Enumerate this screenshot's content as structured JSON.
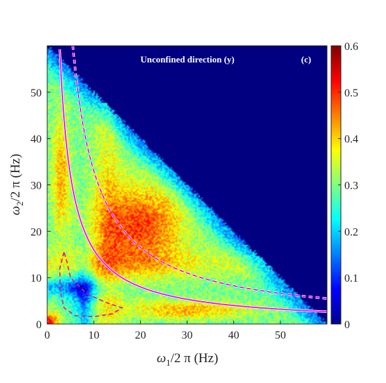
{
  "chart_data": {
    "type": "heatmap",
    "title": "",
    "annotation": "Unconfined direction (y)",
    "panel_label": "(c)",
    "xlabel": {
      "symbol": "ω",
      "sub": "1",
      "rest": "/2 π (Hz)"
    },
    "ylabel": {
      "symbol": "ω",
      "sub": "2",
      "rest": "/2 π (Hz)"
    },
    "xlim": [
      0,
      60
    ],
    "ylim": [
      0,
      60
    ],
    "xticks": [
      0,
      10,
      20,
      30,
      40,
      50
    ],
    "yticks": [
      0,
      10,
      20,
      30,
      40,
      50
    ],
    "colorbar": {
      "min": 0,
      "max": 0.6,
      "ticks": [
        0,
        0.1,
        0.2,
        0.3,
        0.4,
        0.5,
        0.6
      ],
      "colormap": "jet"
    },
    "masked_region": "omega1 + omega2 > 60",
    "hotspots": [
      {
        "x": 20,
        "y": 21,
        "value": 0.48
      },
      {
        "x": 3,
        "y": 32,
        "value": 0.42
      },
      {
        "x": 28,
        "y": 3,
        "value": 0.45
      },
      {
        "x": 1,
        "y": 1,
        "value": 0.6
      }
    ],
    "curves": [
      {
        "name": "solid",
        "style": "solid",
        "colors": [
          "#ff00ff",
          "#ffffff"
        ],
        "equation": "y = 160/x",
        "x_range": [
          2.7,
          60
        ]
      },
      {
        "name": "dashed",
        "style": "dashed",
        "colors": [
          "#ff00ff",
          "#ffffff"
        ],
        "equation": "y = 330/x",
        "x_range": [
          5.5,
          60
        ]
      },
      {
        "name": "loop",
        "style": "dashed",
        "colors": [
          "#e0158c"
        ],
        "points": [
          [
            3.6,
            15.5
          ],
          [
            2.7,
            12
          ],
          [
            2.8,
            7
          ],
          [
            3.6,
            3.5
          ],
          [
            6,
            1.8
          ],
          [
            10,
            1.6
          ],
          [
            14,
            2.2
          ],
          [
            16,
            3.5
          ],
          [
            13,
            4.5
          ],
          [
            8.5,
            6.5
          ],
          [
            5,
            10
          ],
          [
            4.2,
            13.5
          ],
          [
            3.6,
            15.5
          ]
        ]
      }
    ]
  }
}
